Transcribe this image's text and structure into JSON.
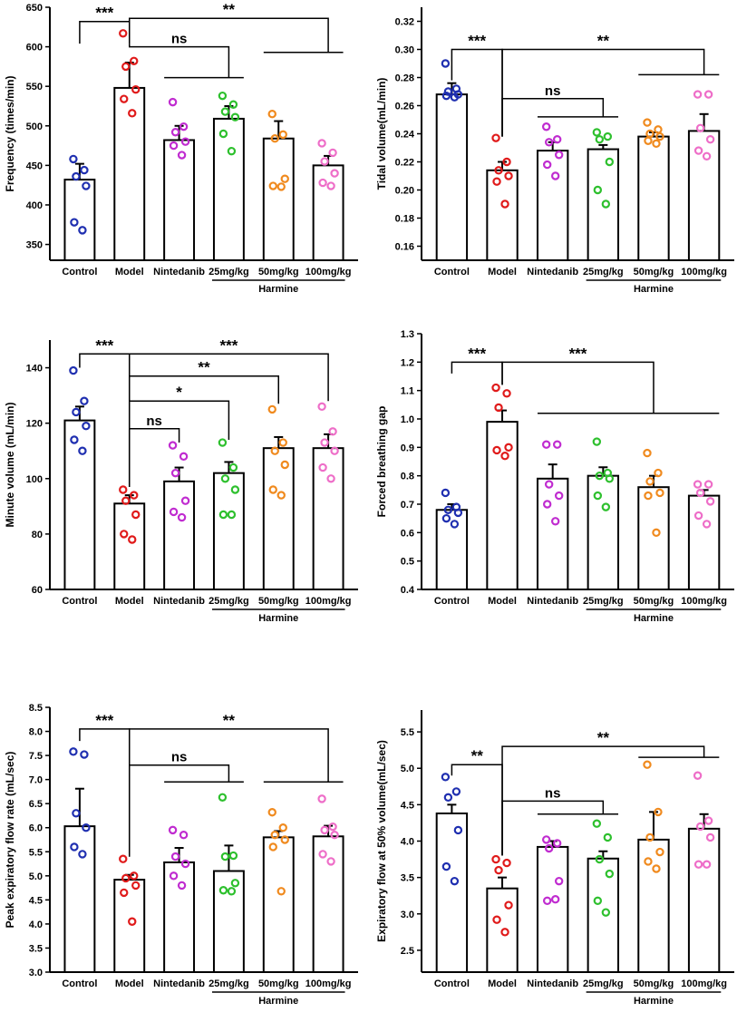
{
  "chart_data": [
    {
      "type": "bar",
      "ylabel": "Frequency (times/min)",
      "ylim": [
        330,
        650
      ],
      "yticks": [
        350,
        400,
        450,
        500,
        550,
        600,
        650
      ],
      "decimals": 0,
      "categories": [
        "Control",
        "Model",
        "Nintedanib",
        "25mg/kg",
        "50mg/kg",
        "100mg/kg"
      ],
      "group_label": "Harmine",
      "colors": [
        "#1f2fb0",
        "#e01a1a",
        "#c02cd0",
        "#2ec02e",
        "#f08a1e",
        "#ee6ec8"
      ],
      "values": [
        432,
        548,
        482,
        509,
        484,
        450
      ],
      "errors": [
        20,
        32,
        18,
        16,
        22,
        12
      ],
      "points": [
        [
          458,
          444,
          436,
          424,
          378,
          368
        ],
        [
          617,
          582,
          575,
          546,
          534,
          516
        ],
        [
          530,
          499,
          492,
          480,
          475,
          463
        ],
        [
          538,
          527,
          518,
          511,
          490,
          468
        ],
        [
          515,
          489,
          484,
          433,
          424,
          423
        ],
        [
          478,
          466,
          455,
          440,
          428,
          424
        ]
      ],
      "annotations": [
        {
          "text": "***",
          "type": "sig",
          "level": 632,
          "from": 0,
          "to": 1,
          "tl": 604,
          "tr": 604
        },
        {
          "text": "ns",
          "type": "ns",
          "level": 600,
          "from": 1,
          "to": 3,
          "tl": 604,
          "tr": 561,
          "sub": [
            2,
            3
          ],
          "sublevel": 561
        },
        {
          "text": "**",
          "type": "sig",
          "level": 636,
          "from": 1,
          "to": 5,
          "tl": 604,
          "tr": 593,
          "sub": [
            4,
            5
          ],
          "sublevel": 593
        }
      ]
    },
    {
      "type": "bar",
      "ylabel": "Tidal volume(mL/min)",
      "ylim": [
        0.15,
        0.33
      ],
      "yticks": [
        0.16,
        0.18,
        0.2,
        0.22,
        0.24,
        0.26,
        0.28,
        0.3,
        0.32
      ],
      "decimals": 2,
      "categories": [
        "Control",
        "Model",
        "Nintedanib",
        "25mg/kg",
        "50mg/kg",
        "100mg/kg"
      ],
      "group_label": "Harmine",
      "colors": [
        "#1f2fb0",
        "#e01a1a",
        "#c02cd0",
        "#2ec02e",
        "#f08a1e",
        "#ee6ec8"
      ],
      "values": [
        0.268,
        0.214,
        0.228,
        0.229,
        0.238,
        0.242
      ],
      "errors": [
        0.008,
        0.006,
        0.006,
        0.003,
        0.003,
        0.012
      ],
      "points": [
        [
          0.29,
          0.272,
          0.27,
          0.268,
          0.267,
          0.266
        ],
        [
          0.237,
          0.22,
          0.214,
          0.21,
          0.206,
          0.19
        ],
        [
          0.245,
          0.236,
          0.234,
          0.225,
          0.218,
          0.21
        ],
        [
          0.241,
          0.238,
          0.236,
          0.22,
          0.2,
          0.19
        ],
        [
          0.248,
          0.243,
          0.24,
          0.238,
          0.235,
          0.233
        ],
        [
          0.268,
          0.268,
          0.244,
          0.236,
          0.228,
          0.224
        ]
      ],
      "annotations": [
        {
          "text": "***",
          "type": "sig",
          "level": 0.3,
          "from": 0,
          "to": 1,
          "tl": 0.278,
          "tr": 0.238
        },
        {
          "text": "**",
          "type": "sig",
          "level": 0.3,
          "from": 1,
          "to": 5,
          "tl": 0.238,
          "tr": 0.282,
          "sub": [
            4,
            5
          ],
          "sublevel": 0.282
        },
        {
          "text": "ns",
          "type": "ns",
          "level": 0.265,
          "from": 1,
          "to": 3,
          "tl": 0.238,
          "tr": 0.252,
          "sub": [
            2,
            3
          ],
          "sublevel": 0.252
        }
      ]
    },
    {
      "type": "bar",
      "ylabel": "Minute volume (mL/min)",
      "ylim": [
        60,
        150
      ],
      "yticks": [
        60,
        80,
        100,
        120,
        140
      ],
      "decimals": 0,
      "categories": [
        "Control",
        "Model",
        "Nintedanib",
        "25mg/kg",
        "50mg/kg",
        "100mg/kg"
      ],
      "group_label": "Harmine",
      "colors": [
        "#1f2fb0",
        "#e01a1a",
        "#c02cd0",
        "#2ec02e",
        "#f08a1e",
        "#ee6ec8"
      ],
      "values": [
        121,
        91,
        99,
        102,
        111,
        111
      ],
      "errors": [
        5,
        3,
        5,
        4,
        4,
        5
      ],
      "points": [
        [
          139,
          128,
          124,
          119,
          114,
          110
        ],
        [
          96,
          94,
          92,
          87,
          80,
          78
        ],
        [
          112,
          108,
          102,
          92,
          88,
          86
        ],
        [
          113,
          104,
          100,
          96,
          87,
          87
        ],
        [
          125,
          113,
          110,
          105,
          96,
          94
        ],
        [
          126,
          117,
          113,
          110,
          104,
          100
        ]
      ],
      "annotations": [
        {
          "text": "***",
          "type": "sig",
          "level": 145,
          "from": 0,
          "to": 1,
          "tl": 140,
          "tr": 97
        },
        {
          "text": "***",
          "type": "sig",
          "level": 145,
          "from": 1,
          "to": 5,
          "tl": 97,
          "tr": 128
        },
        {
          "text": "**",
          "type": "sig",
          "level": 137,
          "from": 1,
          "to": 4,
          "tl": 97,
          "tr": 127
        },
        {
          "text": "*",
          "type": "sig",
          "level": 128,
          "from": 1,
          "to": 3,
          "tl": 97,
          "tr": 114
        },
        {
          "text": "ns",
          "type": "ns",
          "level": 118,
          "from": 1,
          "to": 2,
          "tl": 97,
          "tr": 113
        }
      ]
    },
    {
      "type": "bar",
      "ylabel": "Forced breathing gap",
      "ylim": [
        0.4,
        1.3
      ],
      "yticks": [
        0.4,
        0.5,
        0.6,
        0.7,
        0.8,
        0.9,
        1.0,
        1.1,
        1.2,
        1.3
      ],
      "decimals": 1,
      "categories": [
        "Control",
        "Model",
        "Nintedanib",
        "25mg/kg",
        "50mg/kg",
        "100mg/kg"
      ],
      "group_label": "Harmine",
      "colors": [
        "#1f2fb0",
        "#e01a1a",
        "#c02cd0",
        "#2ec02e",
        "#f08a1e",
        "#ee6ec8"
      ],
      "values": [
        0.68,
        0.99,
        0.79,
        0.8,
        0.76,
        0.73
      ],
      "errors": [
        0.02,
        0.04,
        0.05,
        0.03,
        0.04,
        0.02
      ],
      "points": [
        [
          0.74,
          0.69,
          0.68,
          0.67,
          0.65,
          0.63
        ],
        [
          1.11,
          1.09,
          1.04,
          0.9,
          0.89,
          0.87
        ],
        [
          0.91,
          0.91,
          0.77,
          0.73,
          0.7,
          0.64
        ],
        [
          0.92,
          0.81,
          0.8,
          0.79,
          0.73,
          0.69
        ],
        [
          0.88,
          0.81,
          0.78,
          0.74,
          0.73,
          0.6
        ],
        [
          0.77,
          0.77,
          0.74,
          0.71,
          0.66,
          0.63
        ]
      ],
      "annotations": [
        {
          "text": "***",
          "type": "sig",
          "level": 1.2,
          "from": 0,
          "to": 1,
          "tl": 1.16,
          "tr": 1.12
        },
        {
          "text": "***",
          "type": "sig",
          "level": 1.2,
          "from": 1,
          "to": 4,
          "tl": 1.12,
          "tr": 1.02,
          "sub": [
            2,
            5
          ],
          "sublevel": 1.02
        }
      ]
    },
    {
      "type": "bar",
      "ylabel": "Peak expiratory flow rate (mL/sec)",
      "ylim": [
        3.0,
        8.5
      ],
      "yticks": [
        3.0,
        3.5,
        4.0,
        4.5,
        5.0,
        5.5,
        6.0,
        6.5,
        7.0,
        7.5,
        8.0,
        8.5
      ],
      "decimals": 1,
      "categories": [
        "Control",
        "Model",
        "Nintedanib",
        "25mg/kg",
        "50mg/kg",
        "100mg/kg"
      ],
      "group_label": "Harmine",
      "colors": [
        "#1f2fb0",
        "#e01a1a",
        "#c02cd0",
        "#2ec02e",
        "#f08a1e",
        "#ee6ec8"
      ],
      "values": [
        6.03,
        4.92,
        5.28,
        5.1,
        5.8,
        5.82
      ],
      "errors": [
        0.78,
        0.1,
        0.3,
        0.53,
        0.13,
        0.22
      ],
      "points": [
        [
          7.58,
          7.52,
          6.3,
          6.0,
          5.6,
          5.45
        ],
        [
          5.35,
          5.0,
          4.95,
          4.8,
          4.65,
          4.05
        ],
        [
          5.95,
          5.85,
          5.4,
          5.25,
          5.0,
          4.8
        ],
        [
          6.63,
          5.42,
          5.4,
          4.85,
          4.7,
          4.68
        ],
        [
          6.32,
          6.0,
          5.85,
          5.75,
          5.6,
          4.68
        ],
        [
          6.6,
          6.02,
          5.95,
          5.85,
          5.45,
          5.3
        ]
      ],
      "annotations": [
        {
          "text": "***",
          "type": "sig",
          "level": 8.05,
          "from": 0,
          "to": 1,
          "tl": 7.8,
          "tr": 5.4
        },
        {
          "text": "**",
          "type": "sig",
          "level": 8.05,
          "from": 1,
          "to": 5,
          "tl": 5.4,
          "tr": 6.95,
          "sub": [
            4,
            5
          ],
          "sublevel": 6.95
        },
        {
          "text": "ns",
          "type": "ns",
          "level": 7.3,
          "from": 1,
          "to": 3,
          "tl": 5.4,
          "tr": 6.95,
          "sub": [
            2,
            3
          ],
          "sublevel": 6.95
        }
      ]
    },
    {
      "type": "bar",
      "ylabel": "Expiratory flow at 50% volume(mL/sec)",
      "ylim": [
        2.2,
        5.8
      ],
      "yticks": [
        2.5,
        3.0,
        3.5,
        4.0,
        4.5,
        5.0,
        5.5
      ],
      "decimals": 1,
      "categories": [
        "Control",
        "Model",
        "Nintedanib",
        "25mg/kg",
        "50mg/kg",
        "100mg/kg"
      ],
      "group_label": "Harmine",
      "colors": [
        "#1f2fb0",
        "#e01a1a",
        "#c02cd0",
        "#2ec02e",
        "#f08a1e",
        "#ee6ec8"
      ],
      "values": [
        4.38,
        3.35,
        3.92,
        3.76,
        4.02,
        4.17
      ],
      "errors": [
        0.12,
        0.15,
        0.08,
        0.1,
        0.38,
        0.2
      ],
      "points": [
        [
          4.88,
          4.68,
          4.6,
          4.15,
          3.65,
          3.45
        ],
        [
          3.75,
          3.7,
          3.6,
          3.12,
          2.92,
          2.75
        ],
        [
          4.02,
          3.97,
          3.9,
          3.45,
          3.18,
          3.2
        ],
        [
          4.24,
          4.05,
          3.75,
          3.55,
          3.18,
          3.02
        ],
        [
          5.05,
          4.4,
          4.05,
          3.85,
          3.72,
          3.62
        ],
        [
          4.9,
          4.28,
          4.2,
          4.05,
          3.68,
          3.68
        ]
      ],
      "annotations": [
        {
          "text": "**",
          "type": "sig",
          "level": 5.05,
          "from": 0,
          "to": 1,
          "tl": 4.9,
          "tr": 3.8
        },
        {
          "text": "**",
          "type": "sig",
          "level": 5.3,
          "from": 1,
          "to": 5,
          "tl": 3.8,
          "tr": 5.15,
          "sub": [
            4,
            5
          ],
          "sublevel": 5.15
        },
        {
          "text": "ns",
          "type": "ns",
          "level": 4.55,
          "from": 1,
          "to": 3,
          "tl": 3.8,
          "tr": 4.37,
          "sub": [
            2,
            3
          ],
          "sublevel": 4.37
        }
      ]
    }
  ]
}
